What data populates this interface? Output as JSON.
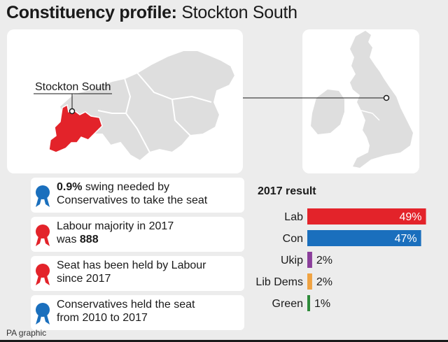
{
  "header": {
    "title_bold": "Constituency profile:",
    "title_rest": " Stockton South"
  },
  "map": {
    "seat_label": "Stockton South",
    "seat_color": "#e3232a"
  },
  "facts": [
    {
      "color": "#1a6fbd",
      "bold1": "0.9%",
      "text1": " swing needed by",
      "line2": "Conservatives to take the seat"
    },
    {
      "color": "#e3232a",
      "line1": "Labour majority in 2017",
      "text2": "was ",
      "bold2": "888"
    },
    {
      "color": "#e3232a",
      "line1": "Seat has been held by Labour",
      "line2": "since 2017"
    },
    {
      "color": "#1a6fbd",
      "line1": "Conservatives held the seat",
      "line2": "from 2010 to 2017"
    }
  ],
  "chart_data": {
    "type": "bar",
    "orientation": "horizontal",
    "title": "2017 result",
    "categories": [
      "Lab",
      "Con",
      "Ukip",
      "Lib Dems",
      "Green"
    ],
    "values": [
      49,
      47,
      2,
      2,
      1
    ],
    "value_labels": [
      "49%",
      "47%",
      "2%",
      "2%",
      "1%"
    ],
    "colors": [
      "#e3232a",
      "#1a6fbd",
      "#8b3f9b",
      "#f0a342",
      "#2e8b3a"
    ],
    "unit": "%"
  },
  "footer": {
    "source": "PA graphic"
  }
}
